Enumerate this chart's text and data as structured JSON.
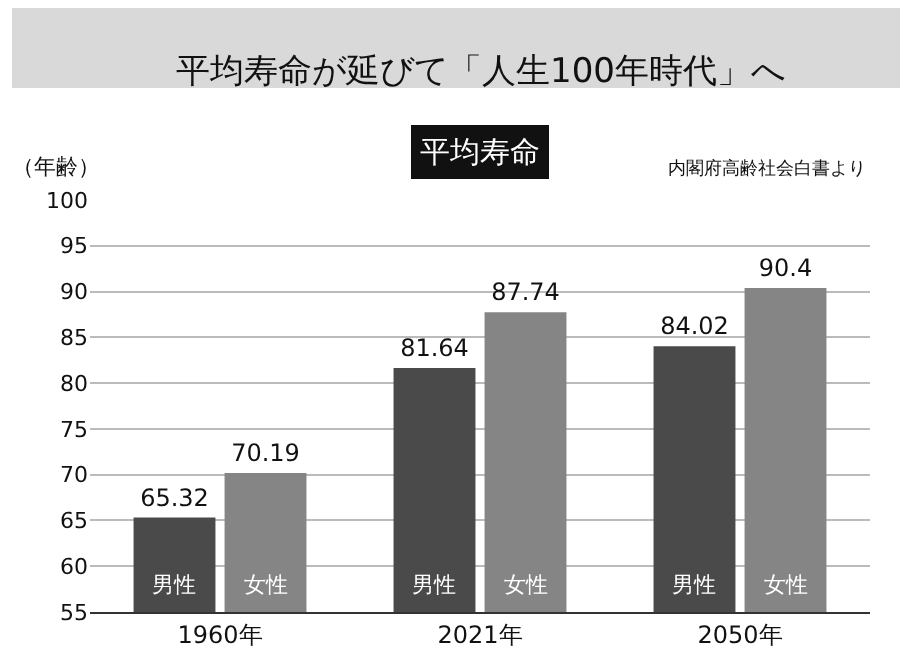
{
  "chart_data": {
    "type": "bar",
    "title": "平均寿命が延びて「人生100年時代」へ",
    "subtitle": "平均寿命",
    "ylabel": "（年齢）",
    "annotations": [
      "内閣府高齢社会白書より"
    ],
    "categories": [
      "1960年",
      "2021年",
      "2050年"
    ],
    "series": [
      {
        "name": "男性",
        "color": "#4a4a4a",
        "values": [
          65.32,
          81.64,
          84.02
        ]
      },
      {
        "name": "女性",
        "color": "#858585",
        "values": [
          70.19,
          87.74,
          90.4
        ]
      }
    ],
    "ylim": [
      55,
      100
    ],
    "yticks": [
      55,
      60,
      65,
      70,
      75,
      80,
      85,
      90,
      95,
      100
    ],
    "grid": "y",
    "data_labels": true,
    "legend": false
  }
}
